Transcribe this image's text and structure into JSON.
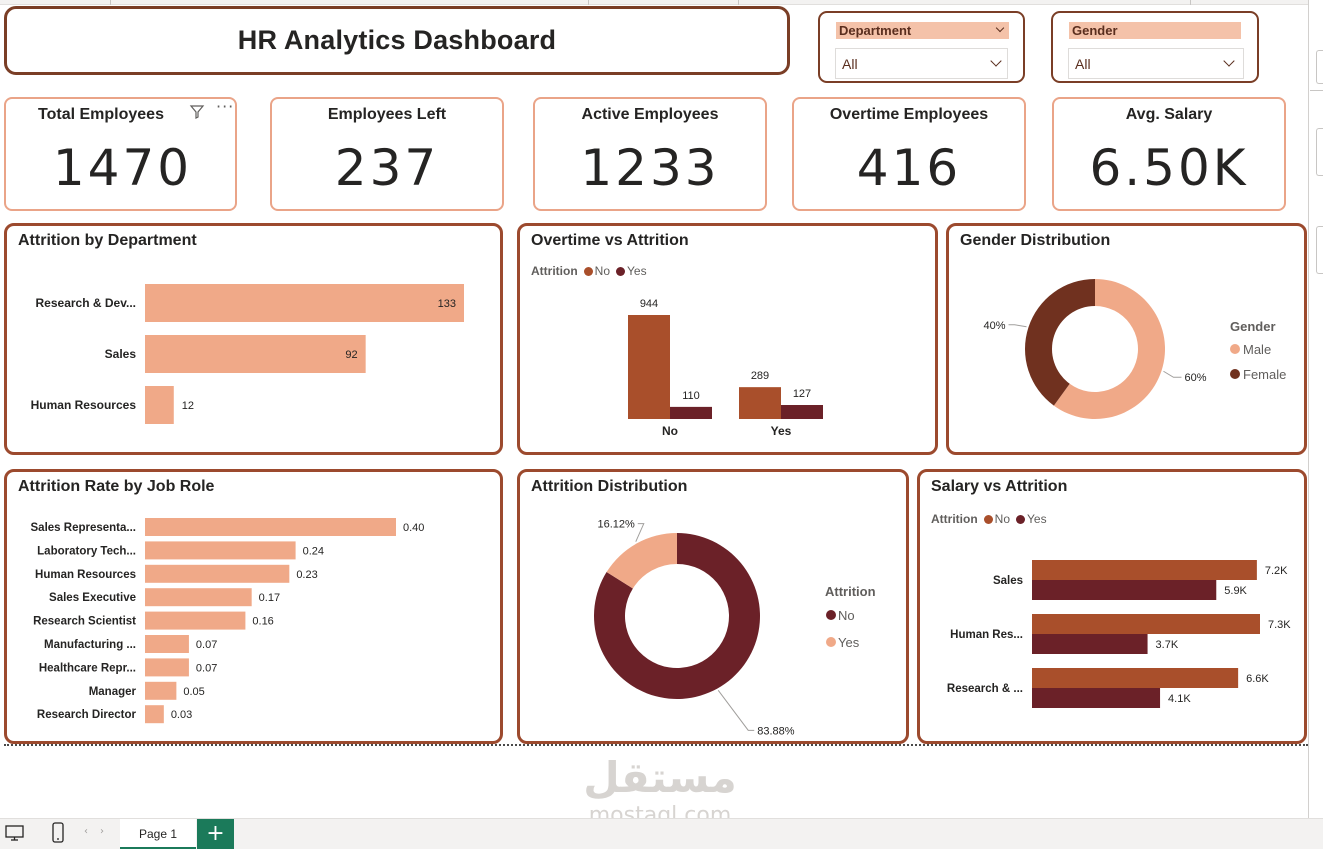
{
  "header": {
    "title": "HR Analytics Dashboard"
  },
  "slicers": [
    {
      "label": "Department",
      "value": "All"
    },
    {
      "label": "Gender",
      "value": "All"
    }
  ],
  "kpis": [
    {
      "label": "Total Employees",
      "value": "1470"
    },
    {
      "label": "Employees Left",
      "value": "237"
    },
    {
      "label": "Active Employees",
      "value": "1233"
    },
    {
      "label": "Overtime Employees",
      "value": "416"
    },
    {
      "label": "Avg. Salary",
      "value": "6.50K"
    }
  ],
  "colors": {
    "panel_border": "#9c4a2e",
    "light": "#f0a988",
    "no": "#a94f2b",
    "yes": "#6b2128",
    "female": "#70311f",
    "attr_no": "#6b2128",
    "attr_yes": "#f0a988"
  },
  "chart_data": [
    {
      "type": "bar",
      "orientation": "horizontal",
      "title": "Attrition by Department",
      "categories": [
        "Research & Dev...",
        "Sales",
        "Human Resources"
      ],
      "values": [
        133,
        92,
        12
      ]
    },
    {
      "type": "bar",
      "title": "Overtime vs Attrition",
      "legend_title": "Attrition",
      "categories": [
        "No",
        "Yes"
      ],
      "series": [
        {
          "name": "No",
          "values": [
            944,
            289
          ]
        },
        {
          "name": "Yes",
          "values": [
            110,
            127
          ]
        }
      ]
    },
    {
      "type": "pie",
      "donut": true,
      "title": "Gender Distribution",
      "legend_title": "Gender",
      "slices": [
        {
          "name": "Male",
          "value": 60,
          "label": "60%"
        },
        {
          "name": "Female",
          "value": 40,
          "label": "40%"
        }
      ]
    },
    {
      "type": "bar",
      "orientation": "horizontal",
      "title": "Attrition Rate by Job Role",
      "categories": [
        "Sales Representa...",
        "Laboratory Tech...",
        "Human Resources",
        "Sales Executive",
        "Research Scientist",
        "Manufacturing ...",
        "Healthcare Repr...",
        "Manager",
        "Research Director"
      ],
      "values": [
        0.4,
        0.24,
        0.23,
        0.17,
        0.16,
        0.07,
        0.07,
        0.05,
        0.03
      ],
      "labels": [
        "0.40",
        "0.24",
        "0.23",
        "0.17",
        "0.16",
        "0.07",
        "0.07",
        "0.05",
        "0.03"
      ]
    },
    {
      "type": "pie",
      "donut": true,
      "title": "Attrition Distribution",
      "legend_title": "Attrition",
      "slices": [
        {
          "name": "No",
          "value": 83.88,
          "label": "83.88%"
        },
        {
          "name": "Yes",
          "value": 16.12,
          "label": "16.12%"
        }
      ]
    },
    {
      "type": "bar",
      "orientation": "horizontal",
      "title": "Salary vs Attrition",
      "legend_title": "Attrition",
      "categories": [
        "Sales",
        "Human Res...",
        "Research & ..."
      ],
      "series": [
        {
          "name": "No",
          "values": [
            7200,
            7300,
            6600
          ],
          "labels": [
            "7.2K",
            "7.3K",
            "6.6K"
          ]
        },
        {
          "name": "Yes",
          "values": [
            5900,
            3700,
            4100
          ],
          "labels": [
            "5.9K",
            "3.7K",
            "4.1K"
          ]
        }
      ]
    }
  ],
  "footer": {
    "page_tab": "Page 1",
    "add_page": "+"
  },
  "watermark": {
    "arabic": "مستقل",
    "latin": "mostaql.com"
  }
}
